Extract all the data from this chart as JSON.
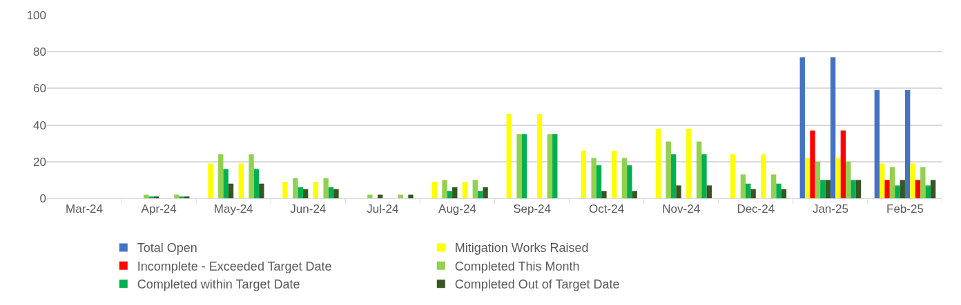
{
  "chart_data": {
    "type": "bar",
    "categories": [
      "Mar-24",
      "Apr-24",
      "May-24",
      "Jun-24",
      "Jul-24",
      "Aug-24",
      "Sep-24",
      "Oct-24",
      "Nov-24",
      "Dec-24",
      "Jan-25",
      "Feb-25"
    ],
    "series": [
      {
        "name": "Total Open",
        "color": "#4472c4",
        "values": [
          0,
          0,
          0,
          0,
          0,
          0,
          0,
          0,
          0,
          0,
          77,
          59
        ]
      },
      {
        "name": "Mitigation Works Raised",
        "color": "#ffff00",
        "values": [
          0,
          0,
          19,
          9,
          0,
          9,
          46,
          26,
          38,
          24,
          22,
          19
        ]
      },
      {
        "name": "Incomplete - Exceeded Target Date",
        "color": "#ff0000",
        "values": [
          0,
          0,
          0,
          0,
          0,
          0,
          0,
          0,
          0,
          0,
          37,
          10
        ]
      },
      {
        "name": "Completed This Month",
        "color": "#92d050",
        "values": [
          0,
          2,
          24,
          11,
          2,
          10,
          35,
          22,
          31,
          13,
          20,
          17
        ]
      },
      {
        "name": "Completed within Target Date",
        "color": "#00b050",
        "values": [
          0,
          1,
          16,
          6,
          0,
          4,
          35,
          18,
          24,
          8,
          10,
          7
        ]
      },
      {
        "name": "Completed Out of Target Date",
        "color": "#375623",
        "values": [
          0,
          1,
          8,
          5,
          2,
          6,
          0,
          4,
          7,
          5,
          10,
          10
        ]
      },
      {
        "color": "#4472c4",
        "values": [
          0,
          0,
          0,
          0,
          0,
          0,
          0,
          0,
          0,
          0,
          77,
          59
        ]
      },
      {
        "color": "#ffff00",
        "values": [
          0,
          0,
          19,
          9,
          0,
          9,
          46,
          26,
          38,
          24,
          22,
          19
        ]
      },
      {
        "color": "#ff0000",
        "values": [
          0,
          0,
          0,
          0,
          0,
          0,
          0,
          0,
          0,
          0,
          37,
          10
        ]
      },
      {
        "color": "#92d050",
        "values": [
          0,
          2,
          24,
          11,
          2,
          10,
          35,
          22,
          31,
          13,
          20,
          17
        ]
      },
      {
        "color": "#00b050",
        "values": [
          0,
          1,
          16,
          6,
          0,
          4,
          35,
          18,
          24,
          8,
          10,
          7
        ]
      },
      {
        "color": "#375623",
        "values": [
          0,
          1,
          8,
          5,
          2,
          6,
          0,
          4,
          7,
          5,
          10,
          10
        ]
      }
    ],
    "ylim": [
      0,
      100
    ],
    "yticks": [
      0,
      20,
      40,
      60,
      80,
      100
    ],
    "grid": "y",
    "legend": "bottom"
  }
}
